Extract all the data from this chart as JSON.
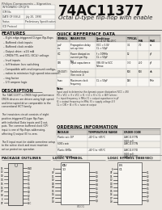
{
  "title": "74AC11377",
  "subtitle": "Octal D-type flip-flop with enable",
  "company": "Philips Components – Signetics",
  "doc_info_rows": [
    [
      "INTEGRATED CIRCUITS",
      ""
    ],
    [
      "ICM No.",
      ""
    ],
    [
      "DATE OF ISSUE",
      "July 20, 1990"
    ],
    [
      "Status",
      "Preliminary Specification"
    ],
    [
      "ICD Protocol",
      ""
    ]
  ],
  "features_title": "FEATURES",
  "features": [
    "Eight edge-triggered D-type flip-flops",
    "Buffered clock inputs",
    "Buffered clock enable",
    "Output drive: ±24 mA",
    "CMOS/TTL and ECL (ECLi) voltage",
    "level inputs",
    "Ioff feature: bus switching",
    "Compatible with and improved configu-",
    "ration to minimize high speed interconnec-",
    "ting factor",
    "1/3 ampere logic"
  ],
  "desc_title": "DESCRIPTION",
  "desc_lines": [
    "The 74AC11377 is CMOS high performance",
    "CMOS devices are driven using high speed",
    "and Interrupted drive comparable to the",
    "conventional HCT family.",
    " ",
    "The transistors circuit consists of eight",
    "positive-triggered D-type flip-flops",
    "with individual Data inputs and Q out-",
    "puts. The common buffered clock (CP)",
    "input is one of flip-flops addressing,",
    "affecting Q output (E) to zero.",
    " ",
    "The E input must be stable sometime setup",
    "to the active clock and must maintain",
    "active protection operation."
  ],
  "qrd_title": "QUICK REFERENCE DATA",
  "ord_title": "ORDERING INFORMATION",
  "pkg_title": "PACKAGE OUTLINES",
  "ls_title": "LOGIC SYMBOL",
  "ls2_title": "LOGIC SYMBOL (IEEE/IEC)",
  "bg": "#eae6e0",
  "white": "#f8f6f2",
  "dark": "#1a1a1a",
  "mid": "#555555",
  "line_color": "#777777",
  "table_head_bg": "#d4d0ca",
  "page_num": "8101"
}
